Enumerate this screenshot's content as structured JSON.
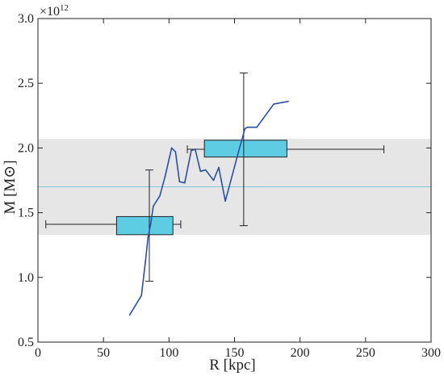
{
  "chart_data": {
    "type": "line",
    "xlabel": "R [kpc]",
    "ylabel": "M  [M⊙]",
    "y_multiplier": "×10",
    "y_multiplier_exp": "12",
    "xlim": [
      0,
      300
    ],
    "ylim": [
      0.5,
      3.0
    ],
    "x_ticks": [
      0,
      50,
      100,
      150,
      200,
      250,
      300
    ],
    "x_tick_labels": [
      "0",
      "50",
      "100",
      "150",
      "200",
      "250",
      "300"
    ],
    "y_ticks": [
      0.5,
      1.0,
      1.5,
      2.0,
      2.5,
      3.0
    ],
    "y_tick_labels": [
      "0.5",
      "1.0",
      "1.5",
      "2.0",
      "2.5",
      "3.0"
    ],
    "grid": false,
    "band": {
      "y_low": 1.33,
      "y_high": 2.07,
      "color": "#e6e6e6"
    },
    "reference_line": {
      "y": 1.7,
      "color": "#7fc7d9"
    },
    "series": [
      {
        "color": "#2b4fa3",
        "x": [
          70,
          79,
          82,
          84,
          86,
          88,
          93,
          97,
          102,
          105,
          108,
          112,
          117,
          120,
          124,
          128,
          134,
          138,
          143,
          148,
          153,
          158,
          160,
          167,
          180,
          191
        ],
        "y": [
          0.71,
          0.86,
          1.12,
          1.31,
          1.41,
          1.55,
          1.63,
          1.78,
          2.0,
          1.97,
          1.74,
          1.73,
          1.98,
          1.99,
          1.82,
          1.83,
          1.75,
          1.85,
          1.59,
          1.78,
          1.97,
          2.15,
          2.16,
          2.16,
          2.34,
          2.36
        ]
      }
    ],
    "boxes": [
      {
        "x_low": 60,
        "x_high": 103,
        "y_low": 1.33,
        "y_high": 1.47,
        "x_center": 85,
        "y_center": 1.41,
        "x_err_low": 6,
        "x_err_high": 109,
        "y_err_low": 0.97,
        "y_err_high": 1.83,
        "color": "#5ecde3"
      },
      {
        "x_low": 127,
        "x_high": 190,
        "y_low": 1.93,
        "y_high": 2.06,
        "x_center": 157,
        "y_center": 1.99,
        "x_err_low": 114,
        "x_err_high": 264,
        "y_err_low": 1.4,
        "y_err_high": 2.58,
        "color": "#5ecde3"
      }
    ]
  }
}
